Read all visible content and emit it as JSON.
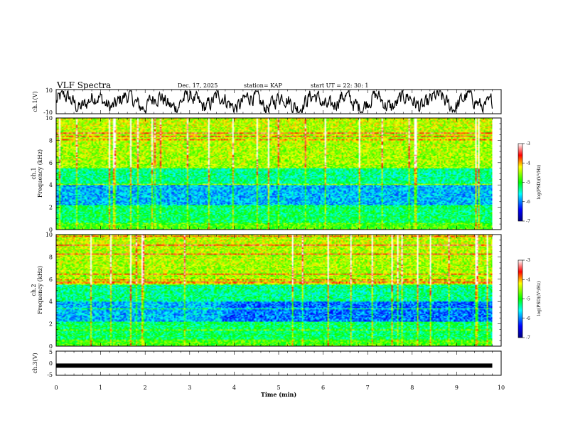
{
  "header": {
    "title": "VLF Spectra",
    "date": "Dec. 17, 2025",
    "station": "station= KAP",
    "start": "start  UT  =   22: 30: 1"
  },
  "chart_data": [
    {
      "type": "line",
      "name": "ch1-waveform",
      "ylabel": "ch.1(V)",
      "ylim": [
        -10,
        10
      ],
      "yticks": [
        "10",
        "-10"
      ],
      "xlim": [
        0,
        10
      ],
      "description_series": "noisy waveform oscillating roughly between -8 and 8 V over 0 to 9.8 min"
    },
    {
      "type": "heatmap",
      "name": "ch1-spectrogram",
      "ylabel": "ch.1\nFrequency (kHz)",
      "ylabel_line1": "ch.1",
      "ylabel_line2": "Frequency (kHz)",
      "ylim": [
        0,
        10
      ],
      "yticks": [
        "0",
        "2",
        "4",
        "6",
        "8",
        "10"
      ],
      "xlim": [
        0,
        10
      ],
      "data_xmax": 9.8,
      "colorbar": {
        "label": "log(PSD)(V²/Hz)",
        "range": [
          -7,
          -3
        ],
        "ticks": [
          "-3",
          "-4",
          "-5",
          "-6",
          "-7"
        ]
      }
    },
    {
      "type": "heatmap",
      "name": "ch2-spectrogram",
      "ylabel_line1": "ch.2",
      "ylabel_line2": "Frequency (kHz)",
      "ylim": [
        0,
        10
      ],
      "yticks": [
        "0",
        "2",
        "4",
        "6",
        "8",
        "10"
      ],
      "xlim": [
        0,
        10
      ],
      "data_xmax": 9.8,
      "colorbar": {
        "label": "log(PSD)(V²/Hz)",
        "range": [
          -7,
          -3
        ],
        "ticks": [
          "-3",
          "-4",
          "-5",
          "-6",
          "-7"
        ]
      }
    },
    {
      "type": "line",
      "name": "ch3-level",
      "ylabel": "ch.3(V)",
      "ylim": [
        -5,
        5
      ],
      "yticks": [
        "5",
        "0",
        "-5"
      ],
      "level_value": -1,
      "xlim": [
        0,
        10
      ],
      "xlabel": "Time  (min)",
      "xticks": [
        "0",
        "1",
        "2",
        "3",
        "4",
        "5",
        "6",
        "7",
        "8",
        "9",
        "10"
      ]
    }
  ],
  "colors": {
    "axis": "#000000",
    "colormap": [
      "#000080",
      "#0000ff",
      "#00ffff",
      "#00ff00",
      "#ffff00",
      "#ff0000",
      "#ffffff"
    ]
  }
}
